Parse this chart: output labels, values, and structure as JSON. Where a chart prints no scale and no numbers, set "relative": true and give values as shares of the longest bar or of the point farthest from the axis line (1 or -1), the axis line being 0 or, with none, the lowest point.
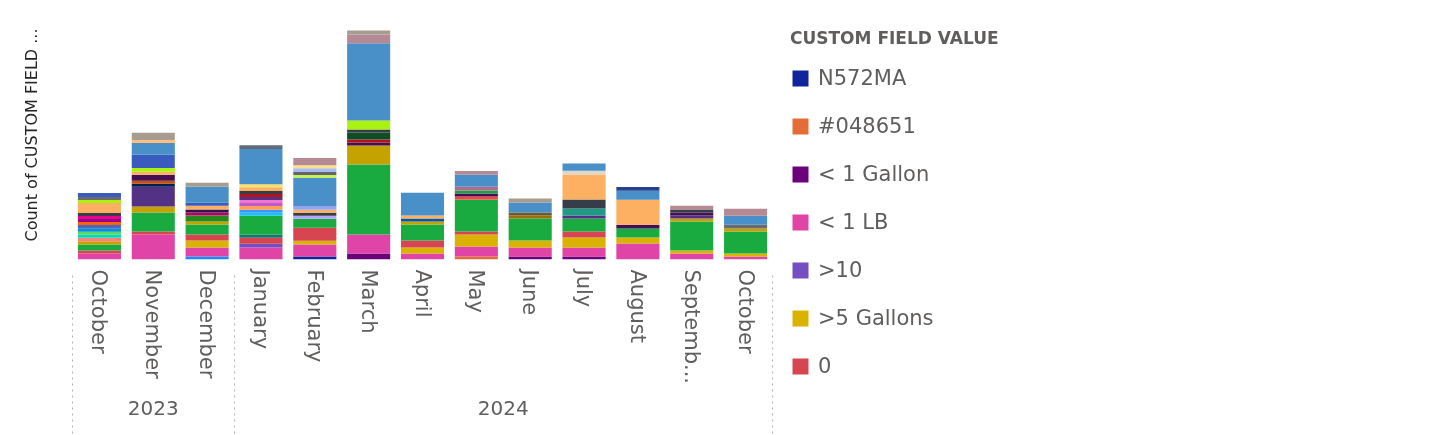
{
  "chart_data": {
    "type": "bar",
    "stacked": true,
    "relative": true,
    "grid": false,
    "legend": "right",
    "ylabel": "Count of CUSTOM FIELD ...",
    "legend_title": "CUSTOM FIELD VALUE",
    "categories": [
      "October",
      "November",
      "December",
      "January",
      "February",
      "March",
      "April",
      "May",
      "June",
      "July",
      "August",
      "Septemb...",
      "October"
    ],
    "annotations": [
      "2023",
      "2024"
    ],
    "series": [
      {
        "color": "#118DFF",
        "values": [
          null,
          null,
          0.013,
          null,
          null,
          null,
          null,
          null,
          null,
          null,
          null,
          null,
          null
        ]
      },
      {
        "name": "N572MA",
        "color": "#12239E",
        "values": [
          null,
          null,
          null,
          null,
          0.013,
          null,
          null,
          null,
          null,
          null,
          null,
          null,
          null
        ]
      },
      {
        "name": "#048651",
        "color": "#E66C37",
        "values": [
          null,
          null,
          null,
          null,
          null,
          null,
          null,
          0.013,
          null,
          null,
          null,
          null,
          null
        ]
      },
      {
        "name": "< 1 Gallon",
        "color": "#6B007B",
        "values": [
          null,
          null,
          null,
          null,
          null,
          0.026,
          null,
          null,
          0.013,
          0.013,
          null,
          null,
          null
        ]
      },
      {
        "name": "< 1 LB",
        "color": "#E044A7",
        "values": [
          0.026,
          0.109,
          0.039,
          0.052,
          0.052,
          0.083,
          0.026,
          0.044,
          0.039,
          0.039,
          0.07,
          0.026,
          0.013
        ]
      },
      {
        "name": ">10",
        "color": "#744EC2",
        "values": [
          null,
          null,
          null,
          0.017,
          null,
          null,
          null,
          null,
          null,
          null,
          null,
          null,
          null
        ]
      },
      {
        "name": ">5 Gallons",
        "color": "#D9B300",
        "values": [
          null,
          null,
          0.031,
          null,
          0.017,
          null,
          0.026,
          0.052,
          0.031,
          0.044,
          0.026,
          0.013,
          0.013
        ]
      },
      {
        "name": "0",
        "color": "#D64550",
        "values": [
          0.013,
          0.013,
          0.026,
          0.026,
          0.057,
          null,
          0.031,
          0.013,
          null,
          0.026,
          null,
          null,
          null
        ]
      },
      {
        "color": "#197278",
        "values": [
          null,
          null,
          null,
          0.013,
          null,
          null,
          null,
          null,
          null,
          null,
          null,
          null,
          null
        ]
      },
      {
        "color": "#1AAB40",
        "values": [
          0.026,
          0.083,
          0.044,
          0.083,
          0.039,
          0.306,
          0.07,
          0.14,
          0.096,
          0.057,
          0.039,
          0.127,
          0.096
        ]
      },
      {
        "color": "#15C6F4",
        "values": [
          null,
          null,
          null,
          0.013,
          null,
          null,
          null,
          null,
          null,
          null,
          null,
          null,
          null
        ]
      },
      {
        "color": "#4092FF",
        "values": [
          null,
          null,
          null,
          0.013,
          null,
          null,
          null,
          null,
          null,
          null,
          null,
          null,
          null
        ]
      },
      {
        "color": "#FFA058",
        "values": [
          null,
          null,
          null,
          0.017,
          null,
          null,
          null,
          null,
          null,
          null,
          null,
          null,
          null
        ]
      },
      {
        "color": "#BE5DC9",
        "values": [
          null,
          null,
          null,
          0.013,
          null,
          null,
          null,
          null,
          null,
          null,
          null,
          null,
          null
        ]
      },
      {
        "color": "#F472D0",
        "values": [
          null,
          null,
          null,
          0.013,
          null,
          null,
          null,
          null,
          null,
          null,
          null,
          null,
          null
        ]
      },
      {
        "color": "#B5A1FF",
        "values": [
          null,
          null,
          null,
          null,
          0.013,
          null,
          null,
          null,
          null,
          null,
          null,
          null,
          null
        ]
      },
      {
        "color": "#C4A200",
        "values": [
          0.015,
          0.026,
          0.013,
          null,
          null,
          0.083,
          0.013,
          null,
          null,
          null,
          null,
          0.013,
          0.013
        ]
      },
      {
        "color": "#FF8080",
        "values": [
          0.015,
          null,
          null,
          null,
          null,
          null,
          null,
          null,
          null,
          null,
          null,
          null,
          null
        ]
      },
      {
        "color": "#00DBBC",
        "values": [
          0.013,
          null,
          null,
          null,
          null,
          null,
          null,
          null,
          null,
          null,
          null,
          null,
          null
        ]
      },
      {
        "color": "#5BD667",
        "values": [
          0.013,
          null,
          null,
          null,
          null,
          null,
          null,
          null,
          null,
          null,
          null,
          null,
          null
        ]
      },
      {
        "color": "#0091D5",
        "values": [
          0.013,
          null,
          null,
          null,
          null,
          null,
          null,
          null,
          null,
          null,
          null,
          null,
          null
        ]
      },
      {
        "color": "#4668C5",
        "values": [
          0.017,
          null,
          null,
          null,
          null,
          null,
          null,
          null,
          null,
          null,
          null,
          null,
          null
        ]
      },
      {
        "color": "#FF6300",
        "values": [
          0.013,
          null,
          null,
          null,
          null,
          null,
          null,
          null,
          null,
          null,
          null,
          null,
          null
        ]
      },
      {
        "color": "#99008A",
        "values": [
          0.013,
          null,
          null,
          null,
          null,
          null,
          null,
          null,
          null,
          null,
          null,
          null,
          null
        ]
      },
      {
        "color": "#EC008C",
        "values": [
          0.013,
          null,
          null,
          null,
          null,
          null,
          null,
          null,
          null,
          null,
          null,
          null,
          null
        ]
      },
      {
        "color": "#533285",
        "values": [
          null,
          0.087,
          null,
          0.013,
          null,
          null,
          null,
          null,
          null,
          0.013,
          null,
          0.013,
          null
        ]
      },
      {
        "color": "#99700A",
        "values": [
          null,
          null,
          null,
          null,
          null,
          null,
          null,
          null,
          0.013,
          null,
          null,
          null,
          null
        ]
      },
      {
        "color": "#FF4141",
        "values": [
          null,
          null,
          null,
          null,
          null,
          null,
          null,
          0.013,
          null,
          null,
          null,
          null,
          null
        ]
      },
      {
        "color": "#1F9A85",
        "values": [
          null,
          null,
          null,
          null,
          null,
          null,
          null,
          null,
          null,
          0.031,
          null,
          null,
          null
        ]
      },
      {
        "color": "#25891C",
        "values": [
          null,
          null,
          0.026,
          null,
          null,
          null,
          null,
          null,
          null,
          null,
          null,
          null,
          null
        ]
      },
      {
        "color": "#0057A2",
        "values": [
          null,
          null,
          null,
          null,
          null,
          null,
          0.013,
          null,
          null,
          null,
          null,
          null,
          null
        ]
      },
      {
        "color": "#002050",
        "values": [
          null,
          0.013,
          null,
          null,
          null,
          null,
          null,
          null,
          null,
          null,
          null,
          null,
          null
        ]
      },
      {
        "color": "#C94F0F",
        "values": [
          null,
          0.013,
          null,
          null,
          null,
          null,
          null,
          null,
          null,
          null,
          null,
          null,
          null
        ]
      },
      {
        "color": "#450F54",
        "values": [
          null,
          0.026,
          null,
          null,
          null,
          0.013,
          null,
          0.013,
          null,
          null,
          0.017,
          0.013,
          null
        ]
      },
      {
        "color": "#B60064",
        "values": [
          null,
          null,
          0.013,
          null,
          null,
          null,
          null,
          null,
          null,
          null,
          null,
          null,
          null
        ]
      },
      {
        "color": "#34124F",
        "values": [
          null,
          null,
          0.013,
          null,
          null,
          null,
          null,
          null,
          null,
          null,
          null,
          null,
          null
        ]
      },
      {
        "color": "#B5121B",
        "values": [
          null,
          null,
          null,
          0.013,
          null,
          0.013,
          null,
          null,
          null,
          null,
          null,
          null,
          null
        ]
      },
      {
        "color": "#6B5A2B",
        "values": [
          null,
          null,
          null,
          null,
          null,
          null,
          null,
          null,
          0.013,
          null,
          null,
          null,
          null
        ]
      },
      {
        "color": "#0F4D24",
        "values": [
          null,
          null,
          null,
          null,
          null,
          0.031,
          null,
          null,
          null,
          null,
          null,
          null,
          null
        ]
      },
      {
        "color": "#373D48",
        "values": [
          0.013,
          null,
          null,
          0.013,
          0.013,
          0.013,
          null,
          null,
          null,
          0.039,
          null,
          0.013,
          null
        ]
      },
      {
        "color": "#1E9E45",
        "values": [
          null,
          null,
          null,
          null,
          null,
          null,
          null,
          0.013,
          null,
          null,
          null,
          null,
          null
        ]
      },
      {
        "color": "#FDB062",
        "values": [
          0.044,
          0.013,
          0.017,
          0.017,
          0.013,
          null,
          0.013,
          null,
          null,
          0.109,
          0.109,
          null,
          null
        ]
      },
      {
        "color": "#FFE066",
        "values": [
          null,
          null,
          null,
          0.013,
          null,
          null,
          null,
          null,
          null,
          null,
          null,
          null,
          null
        ]
      },
      {
        "color": "#93A4F0",
        "values": [
          null,
          null,
          null,
          null,
          0.017,
          null,
          null,
          null,
          null,
          null,
          null,
          null,
          null
        ]
      },
      {
        "color": "#AAF20F",
        "values": [
          0.013,
          0.017,
          null,
          null,
          null,
          0.039,
          null,
          null,
          null,
          null,
          null,
          null,
          null
        ]
      },
      {
        "color": "#6B6B6B",
        "values": [
          0.013,
          null,
          null,
          null,
          null,
          null,
          null,
          null,
          null,
          null,
          null,
          null,
          0.017
        ]
      },
      {
        "color": "#3A5BBE",
        "values": [
          0.017,
          0.057,
          0.013,
          null,
          null,
          null,
          null,
          null,
          null,
          null,
          null,
          null,
          null
        ]
      },
      {
        "color": "#B06B8A",
        "values": [
          null,
          null,
          null,
          null,
          null,
          null,
          null,
          0.017,
          null,
          null,
          null,
          null,
          null
        ]
      },
      {
        "color": "#DDD6C9",
        "values": [
          null,
          null,
          null,
          null,
          null,
          null,
          null,
          null,
          null,
          0.017,
          null,
          null,
          null
        ]
      },
      {
        "color": "#4A90C8",
        "values": [
          null,
          0.052,
          0.07,
          0.153,
          0.122,
          0.337,
          0.1,
          0.052,
          0.044,
          0.031,
          0.039,
          null,
          0.039
        ]
      },
      {
        "color": "#FFBF80",
        "values": [
          null,
          0.013,
          null,
          null,
          null,
          null,
          null,
          null,
          null,
          null,
          null,
          null,
          null
        ]
      },
      {
        "color": "#C5F060",
        "values": [
          null,
          null,
          null,
          null,
          0.013,
          null,
          null,
          null,
          null,
          null,
          null,
          null,
          null
        ]
      },
      {
        "color": "#666666",
        "values": [
          null,
          null,
          null,
          null,
          0.013,
          null,
          null,
          null,
          null,
          null,
          null,
          null,
          null
        ]
      },
      {
        "color": "#A9BCF5",
        "values": [
          null,
          null,
          null,
          null,
          0.017,
          null,
          null,
          null,
          null,
          null,
          null,
          null,
          null
        ]
      },
      {
        "color": "#FFE08A",
        "values": [
          null,
          null,
          null,
          null,
          0.013,
          null,
          null,
          null,
          null,
          null,
          null,
          null,
          null
        ]
      },
      {
        "color": "#2A3F8F",
        "values": [
          null,
          null,
          null,
          null,
          null,
          null,
          null,
          null,
          null,
          null,
          0.017,
          null,
          null
        ]
      },
      {
        "color": "#636B78",
        "values": [
          null,
          null,
          null,
          0.017,
          null,
          null,
          null,
          null,
          null,
          null,
          null,
          null,
          null
        ]
      },
      {
        "color": "#B58A94",
        "values": [
          null,
          null,
          null,
          null,
          0.031,
          0.039,
          null,
          0.017,
          null,
          null,
          null,
          0.017,
          0.031
        ]
      },
      {
        "color": "#A89C90",
        "values": [
          null,
          0.031,
          0.017,
          null,
          null,
          0.017,
          null,
          null,
          0.017,
          null,
          null,
          null,
          null
        ]
      }
    ]
  }
}
